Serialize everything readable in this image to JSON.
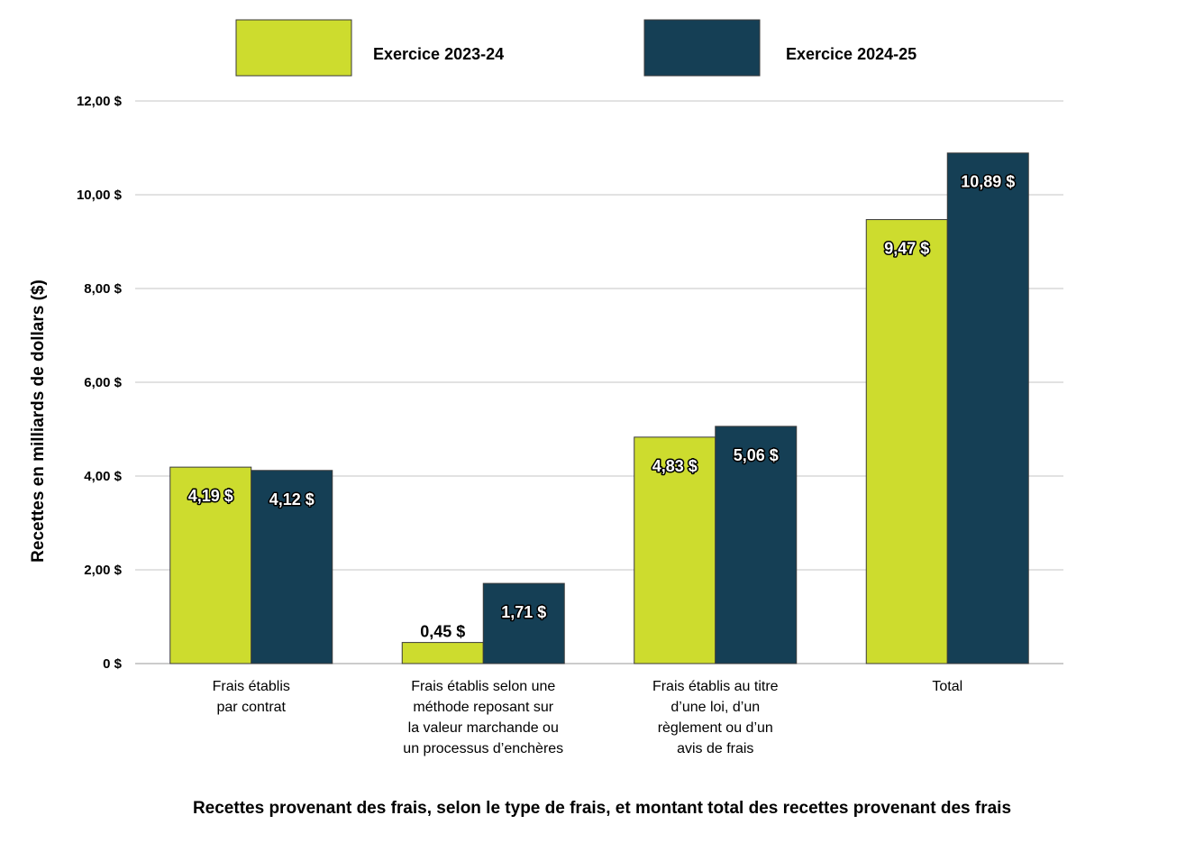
{
  "chart_data": {
    "type": "bar",
    "title": "Recettes provenant des frais, selon le type de frais, et montant total des recettes provenant des frais",
    "xlabel": "",
    "ylabel": "Recettes en milliards de dollars ($)",
    "ylim": [
      0,
      12
    ],
    "yticks": [
      "0 $",
      "2,00 $",
      "4,00 $",
      "6,00 $",
      "8,00 $",
      "10,00 $",
      "12,00 $"
    ],
    "grid": true,
    "legend_position": "top",
    "categories": [
      [
        "Frais établis",
        "par contrat"
      ],
      [
        "Frais établis selon une",
        "méthode reposant sur",
        "la valeur marchande ou",
        "un processus d’enchères"
      ],
      [
        "Frais établis au titre",
        "d’une loi, d’un",
        "règlement ou d’un",
        "avis de frais"
      ],
      [
        "Total"
      ]
    ],
    "series": [
      {
        "name": "Exercice 2023-24",
        "color": "#cddc2e",
        "values": [
          4.19,
          0.45,
          4.83,
          9.47
        ],
        "labels": [
          "4,19 $",
          "0,45 $",
          "4,83 $",
          "9,47 $"
        ]
      },
      {
        "name": "Exercice 2024-25",
        "color": "#153f55",
        "values": [
          4.12,
          1.71,
          5.06,
          10.89
        ],
        "labels": [
          "4,12 $",
          "1,71 $",
          "5,06 $",
          "10,89 $"
        ]
      }
    ]
  }
}
